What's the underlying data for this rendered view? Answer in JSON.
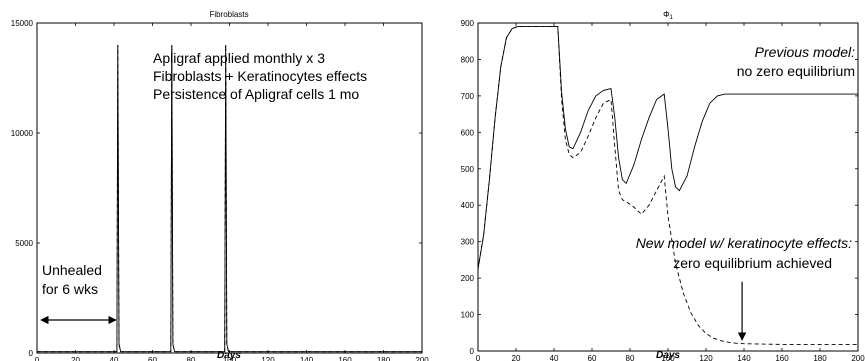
{
  "chart_data": [
    {
      "type": "line",
      "title": "Fibroblasts",
      "xlabel": "Days",
      "ylabel": "",
      "xlim": [
        0,
        200
      ],
      "ylim": [
        0,
        15000
      ],
      "xticks": [
        0,
        20,
        40,
        60,
        80,
        100,
        120,
        140,
        160,
        180,
        200
      ],
      "yticks": [
        0,
        5000,
        10000,
        15000
      ],
      "xtick_labels": [
        "0",
        "20",
        "40",
        "60",
        "80",
        "100",
        "120",
        "140",
        "160",
        "180",
        "200"
      ],
      "ytick_labels": [
        "0",
        "5000",
        "10000",
        "15000"
      ],
      "series": [
        {
          "style": "solid",
          "x": [
            0,
            41.5,
            42,
            42.6,
            43.5,
            69.5,
            70,
            70.6,
            71.5,
            97.5,
            98,
            98.6,
            99.5,
            200
          ],
          "y": [
            60,
            60,
            14000,
            400,
            60,
            60,
            14000,
            400,
            60,
            60,
            14000,
            400,
            60,
            60
          ]
        },
        {
          "style": "dashed",
          "x": [
            0,
            41.5,
            42,
            42.6,
            43.5,
            69.5,
            70,
            70.6,
            71.5,
            97.5,
            98,
            98.6,
            99.5,
            200
          ],
          "y": [
            60,
            60,
            14000,
            400,
            60,
            60,
            14000,
            400,
            60,
            60,
            14000,
            400,
            60,
            60
          ]
        }
      ],
      "annotations": {
        "text_lines": [
          "Apligraf applied monthly x 3",
          "Fibroblasts + Keratinocytes effects",
          "Persistence of Apligraf cells 1 mo"
        ],
        "unhealed_lines": [
          "Unhealed",
          "for 6 wks"
        ],
        "arrow_x_range": [
          0,
          42
        ],
        "arrow_y": 1500
      }
    },
    {
      "type": "line",
      "title": "Φ",
      "title_subscript": "1",
      "xlabel": "Days",
      "ylabel": "",
      "xlim": [
        0,
        200
      ],
      "ylim": [
        0,
        900
      ],
      "xticks": [
        0,
        20,
        40,
        60,
        80,
        100,
        120,
        140,
        160,
        180,
        200
      ],
      "yticks": [
        0,
        100,
        200,
        300,
        400,
        500,
        600,
        700,
        800,
        900
      ],
      "xtick_labels": [
        "0",
        "20",
        "40",
        "60",
        "80",
        "100",
        "120",
        "140",
        "160",
        "180",
        "200"
      ],
      "ytick_labels": [
        "0",
        "100",
        "200",
        "300",
        "400",
        "500",
        "600",
        "700",
        "800",
        "900"
      ],
      "series": [
        {
          "name": "Previous model",
          "style": "solid",
          "x": [
            0,
            3,
            6,
            9,
            12,
            15,
            18,
            21,
            24,
            42,
            44,
            46,
            48,
            50,
            54,
            58,
            62,
            66,
            70,
            72,
            74,
            76,
            78,
            82,
            86,
            90,
            94,
            98,
            100,
            102,
            104,
            106,
            110,
            114,
            118,
            122,
            126,
            130,
            140,
            160,
            180,
            200
          ],
          "y": [
            225,
            320,
            470,
            640,
            780,
            860,
            885,
            890,
            890,
            890,
            710,
            610,
            560,
            555,
            600,
            660,
            700,
            715,
            720,
            640,
            530,
            470,
            460,
            510,
            580,
            640,
            690,
            705,
            610,
            500,
            450,
            440,
            480,
            560,
            630,
            680,
            700,
            705,
            705,
            705,
            705,
            705
          ]
        },
        {
          "name": "New model w/ keratinocyte effects",
          "style": "dashed",
          "x": [
            0,
            3,
            6,
            9,
            12,
            15,
            18,
            21,
            24,
            42,
            44,
            46,
            48,
            50,
            54,
            58,
            62,
            66,
            70,
            72,
            74,
            76,
            78,
            82,
            86,
            90,
            94,
            98,
            100,
            104,
            108,
            112,
            116,
            120,
            124,
            128,
            132,
            136,
            140,
            150,
            160,
            180,
            200
          ],
          "y": [
            225,
            320,
            470,
            640,
            780,
            860,
            885,
            890,
            890,
            890,
            690,
            580,
            540,
            530,
            545,
            590,
            640,
            680,
            690,
            560,
            440,
            415,
            410,
            395,
            375,
            400,
            440,
            480,
            370,
            240,
            160,
            105,
            70,
            48,
            35,
            28,
            24,
            21,
            20,
            19,
            18,
            18,
            18
          ]
        }
      ],
      "annotations": {
        "prev_italic": "Previous model:",
        "prev_normal": "no zero equilibrium",
        "new_italic": "New model w/ keratinocyte effects:",
        "new_normal": "zero equilibrium achieved",
        "arrow_x": 139,
        "arrow_y_from": 190,
        "arrow_y_to": 30
      }
    }
  ]
}
